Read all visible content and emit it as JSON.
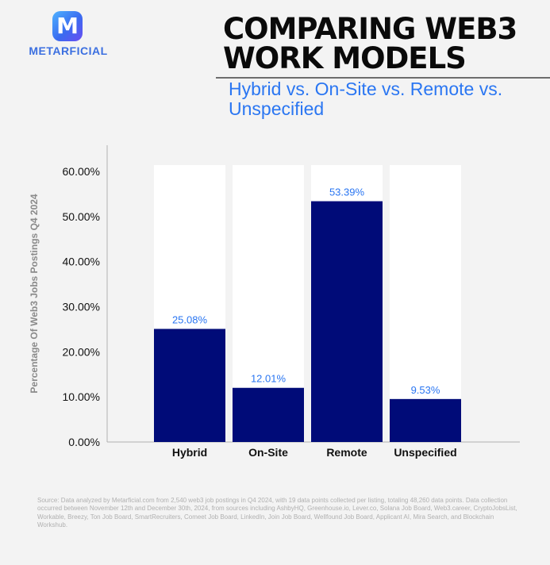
{
  "brand": {
    "name": "METARFICIAL",
    "icon": "M"
  },
  "header": {
    "title_line1": "COMPARING WEB3",
    "title_line2": "WORK MODELS",
    "subtitle": "Hybrid vs. On-Site vs. Remote vs. Unspecified"
  },
  "footnote": "Source: Data analyzed by Metarficial.com from 2,540 web3 job postings in Q4 2024, with 19 data points collected per listing, totaling 48,260 data points. Data collection occurred between November 12th and December 30th, 2024, from sources including AshbyHQ, Greenhouse.io, Lever.co, Solana Job Board, Web3.career, CryptoJobsList, Workable, Breezy, Ton Job Board, SmartRecruiters, Comeet Job Board, LinkedIn, Join Job Board, Wellfound Job Board, Applicant AI, Mira Search, and Blockchain Workshub.",
  "colors": {
    "bar": "#000b78",
    "bar_background": "#ffffff",
    "data_label": "#2a76f2",
    "axis": "#b0b0b0",
    "page_background": "#f3f3f3"
  },
  "chart_data": {
    "type": "bar",
    "categories": [
      "Hybrid",
      "On-Site",
      "Remote",
      "Unspecified"
    ],
    "values": [
      25.08,
      12.01,
      53.39,
      9.53
    ],
    "value_labels": [
      "25.08%",
      "12.01%",
      "53.39%",
      "9.53%"
    ],
    "ylabel": "Percentage Of Web3 Jobs Postings Q4 2024",
    "ylim": [
      0,
      60
    ],
    "yticks": [
      0,
      10,
      20,
      30,
      40,
      50,
      60
    ],
    "ytick_labels": [
      "0.00%",
      "10.00%",
      "20.00%",
      "30.00%",
      "40.00%",
      "50.00%",
      "60.00%"
    ],
    "grid": false
  }
}
